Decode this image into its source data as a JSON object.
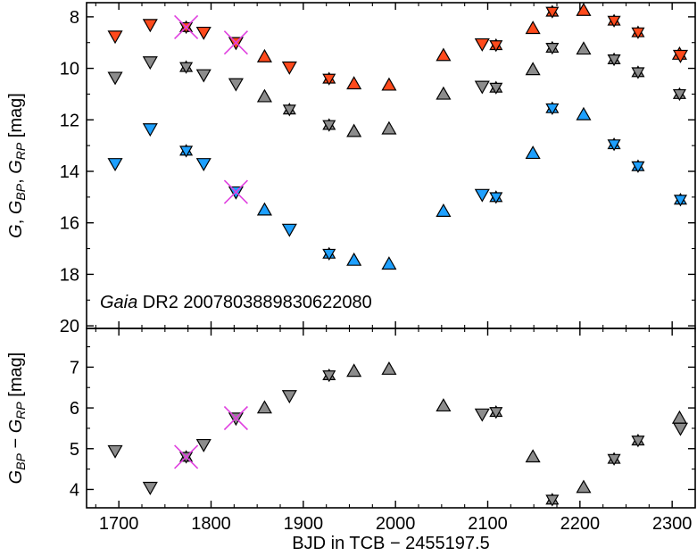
{
  "chart_data": [
    {
      "type": "scatter",
      "panel": "top",
      "title": "",
      "xlabel": "",
      "ylabel": {
        "main": "G, G",
        "sub1": "BP",
        "sep": ", G",
        "sub2": "RP",
        "unit": " [mag]"
      },
      "xlim": [
        1665,
        2325
      ],
      "ylim": [
        20.1,
        7.45
      ],
      "y_inverted": true,
      "yticks": [
        8,
        10,
        12,
        14,
        16,
        18,
        20
      ],
      "annotation": {
        "italic": "Gaia",
        "rest": " DR2 2007803889830622080"
      },
      "series": [
        {
          "name": "G_RP",
          "color": "#ff4a1c",
          "points": [
            {
              "x": 1696,
              "y": 8.75,
              "m": "down"
            },
            {
              "x": 1734,
              "y": 8.3,
              "m": "down"
            },
            {
              "x": 1773,
              "y": 8.4,
              "m": "star",
              "rejected": true
            },
            {
              "x": 1792,
              "y": 8.6,
              "m": "down"
            },
            {
              "x": 1827,
              "y": 9.0,
              "m": "down",
              "rejected": true
            },
            {
              "x": 1858,
              "y": 9.55,
              "m": "up"
            },
            {
              "x": 1885,
              "y": 9.95,
              "m": "down"
            },
            {
              "x": 1928,
              "y": 10.4,
              "m": "star"
            },
            {
              "x": 1955,
              "y": 10.6,
              "m": "up"
            },
            {
              "x": 1993,
              "y": 10.65,
              "m": "up"
            },
            {
              "x": 2052,
              "y": 9.5,
              "m": "up"
            },
            {
              "x": 2094,
              "y": 9.05,
              "m": "down"
            },
            {
              "x": 2109,
              "y": 9.1,
              "m": "star"
            },
            {
              "x": 2149,
              "y": 8.45,
              "m": "up"
            },
            {
              "x": 2170,
              "y": 7.8,
              "m": "star"
            },
            {
              "x": 2204,
              "y": 7.75,
              "m": "up"
            },
            {
              "x": 2237,
              "y": 8.15,
              "m": "star"
            },
            {
              "x": 2263,
              "y": 8.6,
              "m": "star"
            },
            {
              "x": 2308,
              "y": 9.45,
              "m": "up"
            },
            {
              "x": 2309,
              "y": 9.5,
              "m": "down"
            }
          ]
        },
        {
          "name": "G",
          "color": "#8c8c8c",
          "points": [
            {
              "x": 1696,
              "y": 10.35,
              "m": "down"
            },
            {
              "x": 1734,
              "y": 9.75,
              "m": "down"
            },
            {
              "x": 1773,
              "y": 9.95,
              "m": "star"
            },
            {
              "x": 1792,
              "y": 10.25,
              "m": "down"
            },
            {
              "x": 1827,
              "y": 10.6,
              "m": "down"
            },
            {
              "x": 1858,
              "y": 11.1,
              "m": "up"
            },
            {
              "x": 1885,
              "y": 11.6,
              "m": "star"
            },
            {
              "x": 1928,
              "y": 12.2,
              "m": "star"
            },
            {
              "x": 1955,
              "y": 12.45,
              "m": "up"
            },
            {
              "x": 1993,
              "y": 12.35,
              "m": "up"
            },
            {
              "x": 2052,
              "y": 11.0,
              "m": "up"
            },
            {
              "x": 2094,
              "y": 10.7,
              "m": "down"
            },
            {
              "x": 2109,
              "y": 10.75,
              "m": "star"
            },
            {
              "x": 2149,
              "y": 10.05,
              "m": "up"
            },
            {
              "x": 2170,
              "y": 9.2,
              "m": "star"
            },
            {
              "x": 2204,
              "y": 9.25,
              "m": "up"
            },
            {
              "x": 2237,
              "y": 9.65,
              "m": "star"
            },
            {
              "x": 2263,
              "y": 10.15,
              "m": "star"
            },
            {
              "x": 2308,
              "y": 11.0,
              "m": "star"
            }
          ]
        },
        {
          "name": "G_BP",
          "color": "#1ea0ff",
          "points": [
            {
              "x": 1696,
              "y": 13.7,
              "m": "down"
            },
            {
              "x": 1734,
              "y": 12.35,
              "m": "down"
            },
            {
              "x": 1773,
              "y": 13.2,
              "m": "star"
            },
            {
              "x": 1792,
              "y": 13.7,
              "m": "down"
            },
            {
              "x": 1827,
              "y": 14.8,
              "m": "down",
              "rejected": true
            },
            {
              "x": 1858,
              "y": 15.5,
              "m": "up"
            },
            {
              "x": 1885,
              "y": 16.25,
              "m": "down"
            },
            {
              "x": 1928,
              "y": 17.2,
              "m": "star"
            },
            {
              "x": 1955,
              "y": 17.45,
              "m": "up"
            },
            {
              "x": 1993,
              "y": 17.6,
              "m": "up"
            },
            {
              "x": 2052,
              "y": 15.55,
              "m": "up"
            },
            {
              "x": 2094,
              "y": 14.9,
              "m": "down"
            },
            {
              "x": 2109,
              "y": 15.0,
              "m": "star"
            },
            {
              "x": 2149,
              "y": 13.3,
              "m": "up"
            },
            {
              "x": 2170,
              "y": 11.55,
              "m": "star"
            },
            {
              "x": 2204,
              "y": 11.8,
              "m": "up"
            },
            {
              "x": 2237,
              "y": 12.95,
              "m": "star"
            },
            {
              "x": 2263,
              "y": 13.8,
              "m": "star"
            },
            {
              "x": 2309,
              "y": 15.1,
              "m": "star"
            }
          ]
        }
      ]
    },
    {
      "type": "scatter",
      "panel": "bottom",
      "title": "",
      "xlabel": "BJD in TCB − 2455197.5",
      "ylabel": {
        "pre": "G",
        "sub1": "BP",
        "mid": " − G",
        "sub2": "RP",
        "unit": "  [mag]"
      },
      "xlim": [
        1665,
        2325
      ],
      "ylim": [
        3.55,
        7.95
      ],
      "xticks": [
        1700,
        1800,
        1900,
        2000,
        2100,
        2200,
        2300
      ],
      "yticks": [
        4,
        5,
        6,
        7
      ],
      "series": [
        {
          "name": "G_BP - G_RP",
          "color": "#8c8c8c",
          "points": [
            {
              "x": 1696,
              "y": 4.95,
              "m": "down"
            },
            {
              "x": 1734,
              "y": 4.05,
              "m": "down"
            },
            {
              "x": 1773,
              "y": 4.8,
              "m": "star",
              "rejected": true
            },
            {
              "x": 1792,
              "y": 5.1,
              "m": "down"
            },
            {
              "x": 1827,
              "y": 5.75,
              "m": "down",
              "rejected": true
            },
            {
              "x": 1858,
              "y": 6.0,
              "m": "up"
            },
            {
              "x": 1885,
              "y": 6.3,
              "m": "down"
            },
            {
              "x": 1928,
              "y": 6.8,
              "m": "star"
            },
            {
              "x": 1955,
              "y": 6.9,
              "m": "up"
            },
            {
              "x": 1993,
              "y": 6.95,
              "m": "up"
            },
            {
              "x": 2052,
              "y": 6.05,
              "m": "up"
            },
            {
              "x": 2094,
              "y": 5.85,
              "m": "down"
            },
            {
              "x": 2109,
              "y": 5.9,
              "m": "star"
            },
            {
              "x": 2149,
              "y": 4.8,
              "m": "up"
            },
            {
              "x": 2170,
              "y": 3.75,
              "m": "star"
            },
            {
              "x": 2204,
              "y": 4.05,
              "m": "up"
            },
            {
              "x": 2237,
              "y": 4.75,
              "m": "star"
            },
            {
              "x": 2263,
              "y": 5.2,
              "m": "star"
            },
            {
              "x": 2308,
              "y": 5.75,
              "m": "up"
            },
            {
              "x": 2309,
              "y": 5.5,
              "m": "down"
            }
          ]
        }
      ]
    }
  ]
}
